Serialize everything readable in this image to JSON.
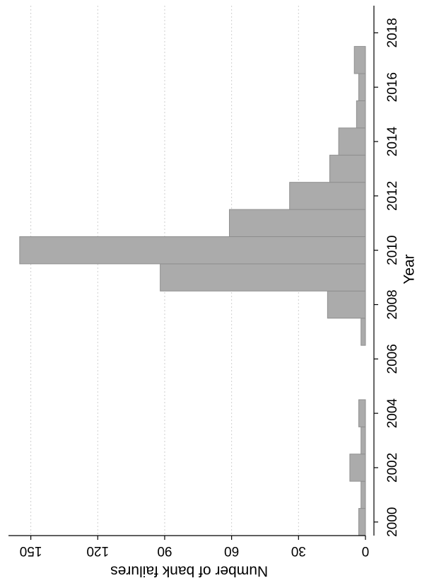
{
  "chart_data": {
    "type": "bar",
    "orientation": "rotated-90-clockwise",
    "title": "",
    "xlabel": "Year",
    "ylabel": "Number of bank failures",
    "x": [
      2000,
      2001,
      2002,
      2003,
      2004,
      2007,
      2008,
      2009,
      2010,
      2011,
      2012,
      2013,
      2014,
      2015,
      2016,
      2017
    ],
    "values": [
      3,
      2,
      7,
      2,
      3,
      2,
      17,
      92,
      155,
      61,
      34,
      16,
      12,
      4,
      3,
      5
    ],
    "xlim": [
      1999.5,
      2019
    ],
    "ylim": [
      0,
      158
    ],
    "x_ticks": [
      "2000",
      "2002",
      "2004",
      "2006",
      "2008",
      "2010",
      "2012",
      "2014",
      "2016",
      "2018"
    ],
    "y_ticks": [
      "0",
      "30",
      "60",
      "90",
      "120",
      "150"
    ],
    "y_tick_values": [
      0,
      30,
      60,
      90,
      120,
      150
    ],
    "x_tick_values": [
      2000,
      2002,
      2004,
      2006,
      2008,
      2010,
      2012,
      2014,
      2016,
      2018
    ],
    "grid": true,
    "colors": {
      "bar_fill": "#ababab",
      "bar_stroke": "#8f8f8f",
      "grid": "#cfcfcf"
    }
  }
}
